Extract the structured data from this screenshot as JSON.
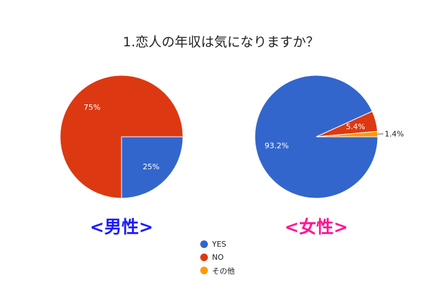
{
  "title": "1.恋人の年収は気になりますか？",
  "colors": {
    "YES": "#3366cc",
    "NO": "#dc3912",
    "その他": "#ff9900"
  },
  "legend": [
    {
      "label": "YES",
      "color": "#3366cc"
    },
    {
      "label": "NO",
      "color": "#dc3912"
    },
    {
      "label": "その他",
      "color": "#ff9900"
    }
  ],
  "captions": {
    "male": {
      "text": "<男性>",
      "color": "#1a1aff"
    },
    "female": {
      "text": "<女性>",
      "color": "#ff1493"
    }
  },
  "chart_data": [
    {
      "type": "pie",
      "title": "<男性>",
      "slices": [
        {
          "label": "YES",
          "value": 25,
          "display": "25%"
        },
        {
          "label": "NO",
          "value": 75,
          "display": "75%"
        }
      ]
    },
    {
      "type": "pie",
      "title": "<女性>",
      "slices": [
        {
          "label": "YES",
          "value": 93.2,
          "display": "93.2%"
        },
        {
          "label": "NO",
          "value": 5.4,
          "display": "5.4%"
        },
        {
          "label": "その他",
          "value": 1.4,
          "display": "1.4%"
        }
      ]
    }
  ]
}
